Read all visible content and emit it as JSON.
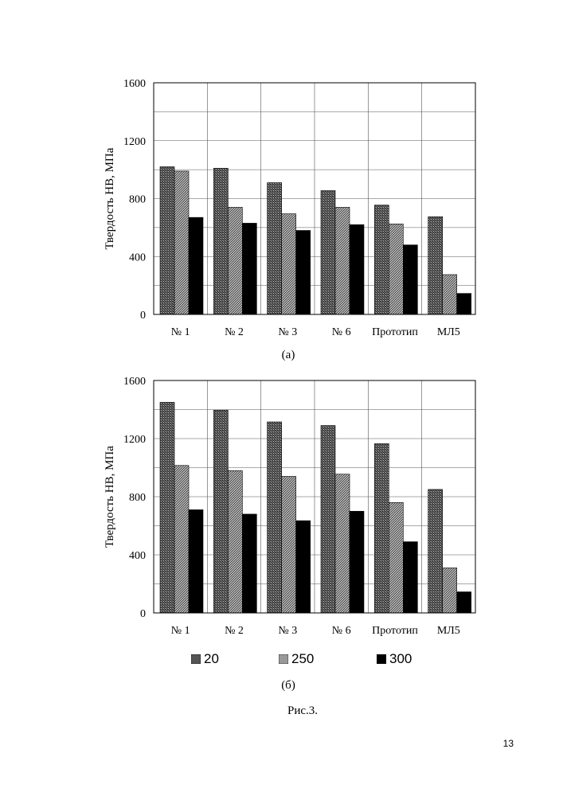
{
  "chart_data": [
    {
      "type": "bar",
      "ylabel": "Твердость НВ, МПа",
      "caption": "(а)",
      "categories": [
        "№ 1",
        "№ 2",
        "№ 3",
        "№ 6",
        "Прототип",
        "МЛ5"
      ],
      "ylim": [
        0,
        1600
      ],
      "yticks": [
        0,
        400,
        800,
        1200,
        1600
      ],
      "grid": true,
      "series": [
        {
          "name": "20",
          "values": [
            1020,
            1010,
            910,
            855,
            755,
            675
          ]
        },
        {
          "name": "250",
          "values": [
            990,
            740,
            695,
            740,
            625,
            275
          ]
        },
        {
          "name": "300",
          "values": [
            670,
            630,
            580,
            620,
            480,
            145
          ]
        }
      ]
    },
    {
      "type": "bar",
      "ylabel": "Твердость НВ, МПа",
      "caption": "(б)",
      "categories": [
        "№ 1",
        "№ 2",
        "№ 3",
        "№ 6",
        "Прототип",
        "МЛ5"
      ],
      "ylim": [
        0,
        1600
      ],
      "yticks": [
        0,
        400,
        800,
        1200,
        1600
      ],
      "grid": true,
      "legend_position": "bottom",
      "series": [
        {
          "name": "20",
          "values": [
            1450,
            1395,
            1315,
            1290,
            1165,
            850
          ]
        },
        {
          "name": "250",
          "values": [
            1015,
            980,
            940,
            955,
            760,
            310
          ]
        },
        {
          "name": "300",
          "values": [
            710,
            680,
            635,
            700,
            490,
            145
          ]
        }
      ]
    }
  ],
  "legend": [
    "20",
    "250",
    "300"
  ],
  "series_fills": [
    "hatch-dense",
    "hatch-diagonal",
    "#000000"
  ],
  "figure_caption": "Рис.3.",
  "page_number": "13"
}
